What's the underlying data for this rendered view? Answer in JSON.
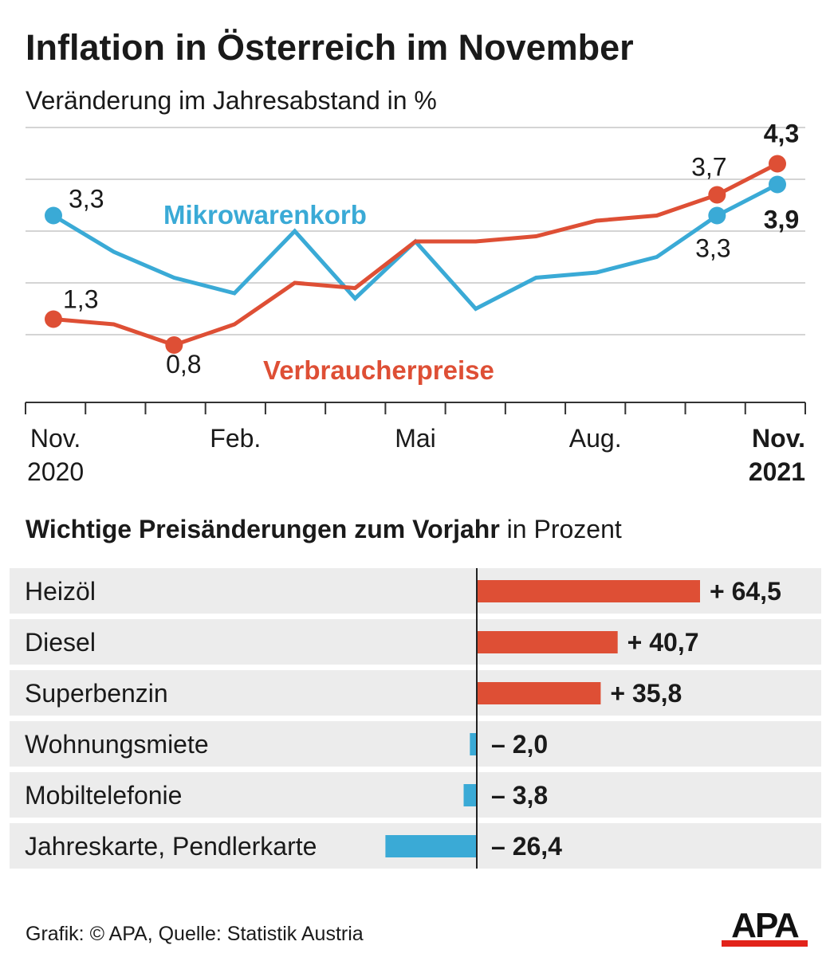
{
  "title": "Inflation in Österreich im November",
  "subtitle": "Veränderung im Jahresabstand in %",
  "chart_data": [
    {
      "type": "line",
      "title": "Inflation in Österreich im November",
      "subtitle": "Veränderung im Jahresabstand in %",
      "x": [
        "2020-11",
        "2020-12",
        "2021-01",
        "2021-02",
        "2021-03",
        "2021-04",
        "2021-05",
        "2021-06",
        "2021-07",
        "2021-08",
        "2021-09",
        "2021-10",
        "2021-11"
      ],
      "x_tick_labels": [
        {
          "x": "2020-11",
          "lines": [
            "Nov.",
            "2020"
          ],
          "bold": false
        },
        {
          "x": "2021-02",
          "lines": [
            "Feb."
          ],
          "bold": false
        },
        {
          "x": "2021-05",
          "lines": [
            "Mai"
          ],
          "bold": false
        },
        {
          "x": "2021-08",
          "lines": [
            "Aug."
          ],
          "bold": false
        },
        {
          "x": "2021-11",
          "lines": [
            "Nov.",
            "2021"
          ],
          "bold": true
        }
      ],
      "ylim": [
        0,
        5
      ],
      "grid": true,
      "series": [
        {
          "name": "Mikrowarenkorb",
          "color": "#3aaad6",
          "values": [
            3.3,
            2.6,
            2.1,
            1.8,
            3.0,
            1.7,
            2.8,
            1.5,
            2.1,
            2.2,
            2.5,
            3.3,
            3.9
          ],
          "highlighted": [
            {
              "index": 0,
              "label": "3,3",
              "bold": false
            },
            {
              "index": 11,
              "label": "3,3",
              "bold": false
            },
            {
              "index": 12,
              "label": "3,9",
              "bold": true
            }
          ]
        },
        {
          "name": "Verbraucherpreise",
          "color": "#de4f35",
          "values": [
            1.3,
            1.2,
            0.8,
            1.2,
            2.0,
            1.9,
            2.8,
            2.8,
            2.9,
            3.2,
            3.3,
            3.7,
            4.3
          ],
          "highlighted": [
            {
              "index": 0,
              "label": "1,3",
              "bold": false
            },
            {
              "index": 2,
              "label": "0,8",
              "bold": false
            },
            {
              "index": 11,
              "label": "3,7",
              "bold": false
            },
            {
              "index": 12,
              "label": "4,3",
              "bold": true
            }
          ]
        }
      ]
    },
    {
      "type": "bar",
      "orientation": "horizontal",
      "title": "Wichtige Preisänderungen zum Vorjahr",
      "title_suffix": "in Prozent",
      "categories": [
        "Heizöl",
        "Diesel",
        "Superbenzin",
        "Wohnungsmiete",
        "Mobiltelefonie",
        "Jahreskarte, Pendlerkarte"
      ],
      "values": [
        64.5,
        40.7,
        35.8,
        -2.0,
        -3.8,
        -26.4
      ],
      "value_labels": [
        "+ 64,5",
        "+ 40,7",
        "+ 35,8",
        "– 2,0",
        "– 3,8",
        "– 26,4"
      ],
      "positive_color": "#de4f35",
      "negative_color": "#3aaad6"
    }
  ],
  "credits": "Grafik: © APA, Quelle: Statistik Austria",
  "logo_text": "APA"
}
